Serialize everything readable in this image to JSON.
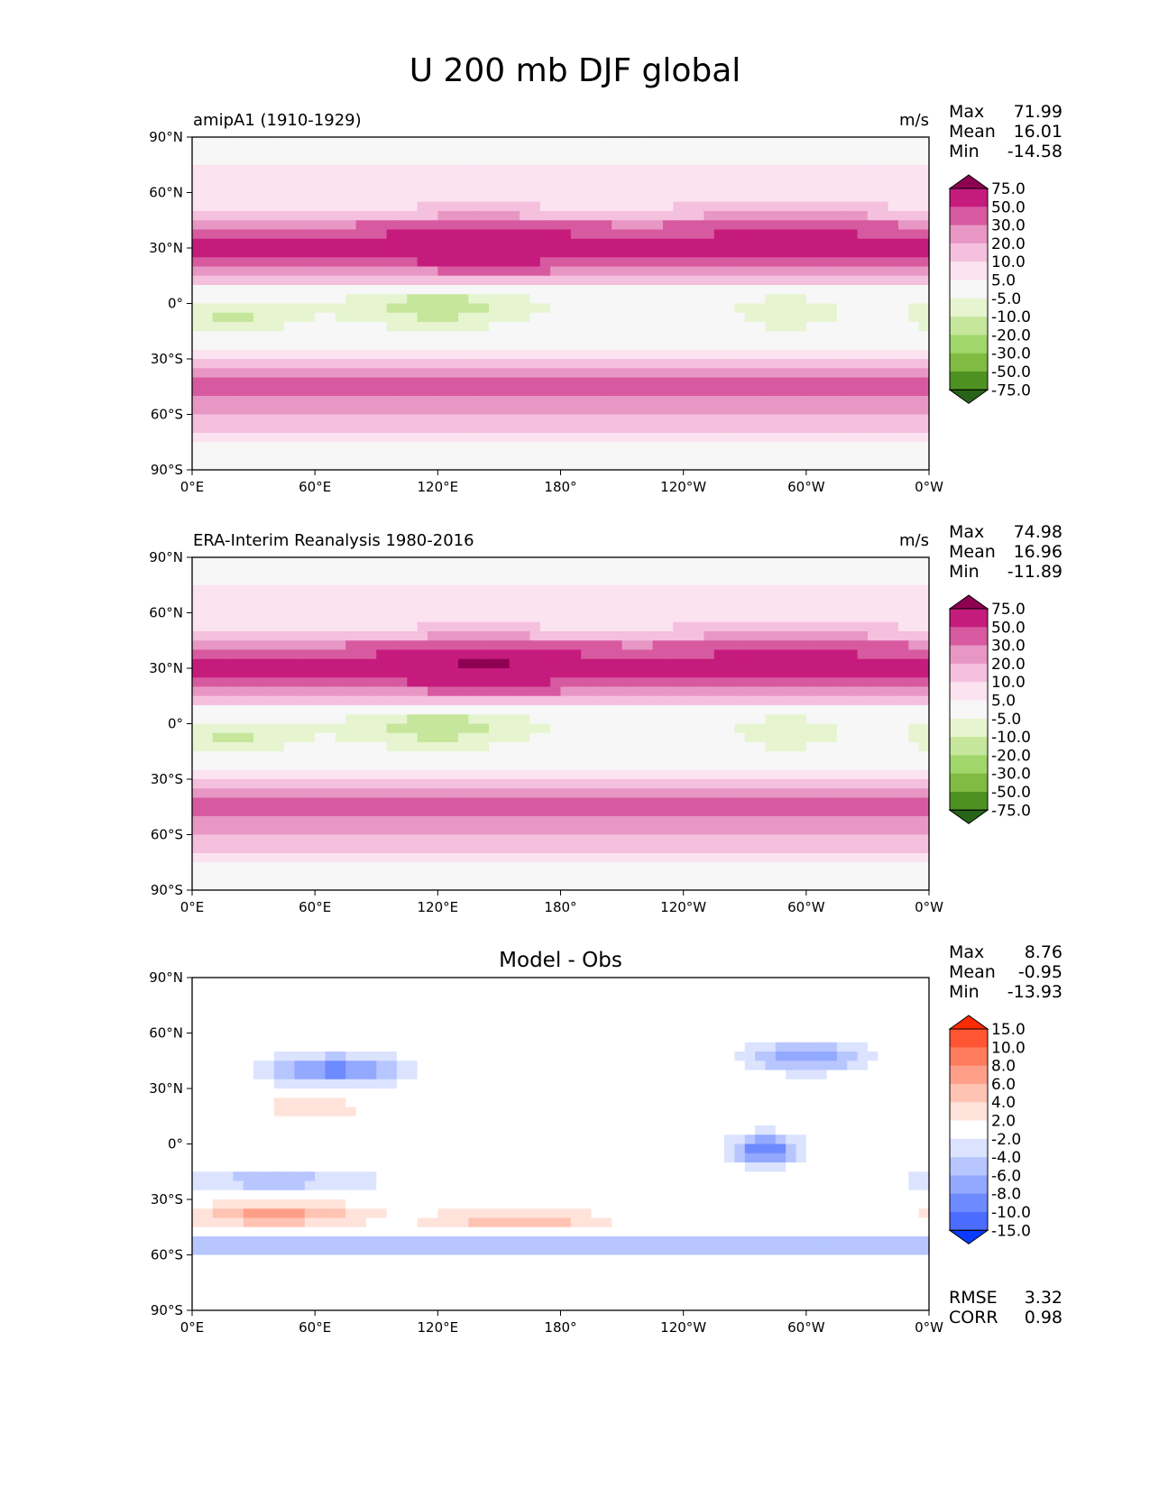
{
  "figure": {
    "title": "U 200 mb DJF global"
  },
  "chart_data": [
    {
      "type": "heatmap",
      "id": "model",
      "left_title": "amipA1 (1910-1929)",
      "center_title": "",
      "units": "m/s",
      "stats": [
        {
          "label": "Max",
          "value": "71.99"
        },
        {
          "label": "Mean",
          "value": "16.01"
        },
        {
          "label": "Min",
          "value": "-14.58"
        }
      ],
      "extra_stats": [],
      "xticks": [
        "0°E",
        "60°E",
        "120°E",
        "180°",
        "120°W",
        "60°W",
        "0°W"
      ],
      "yticks": [
        "90°N",
        "60°N",
        "30°N",
        "0°",
        "30°S",
        "60°S",
        "90°S"
      ],
      "xlim": [
        0,
        360
      ],
      "ylim": [
        -90,
        90
      ],
      "colorbar": {
        "levels": [
          "75.0",
          "50.0",
          "30.0",
          "20.0",
          "10.0",
          "5.0",
          "-5.0",
          "-10.0",
          "-20.0",
          "-30.0",
          "-50.0",
          "-75.0"
        ],
        "colors": [
          "#8e0152",
          "#c51b7d",
          "#d75aa0",
          "#e897c5",
          "#f4c0de",
          "#fbe3f0",
          "#f7f7f7",
          "#e6f5d0",
          "#c5e69b",
          "#a1d76a",
          "#7fbc41",
          "#4d9221",
          "#276419"
        ]
      }
    },
    {
      "type": "heatmap",
      "id": "obs",
      "left_title": "ERA-Interim Reanalysis 1980-2016",
      "center_title": "",
      "units": "m/s",
      "stats": [
        {
          "label": "Max",
          "value": "74.98"
        },
        {
          "label": "Mean",
          "value": "16.96"
        },
        {
          "label": "Min",
          "value": "-11.89"
        }
      ],
      "extra_stats": [],
      "xticks": [
        "0°E",
        "60°E",
        "120°E",
        "180°",
        "120°W",
        "60°W",
        "0°W"
      ],
      "yticks": [
        "90°N",
        "60°N",
        "30°N",
        "0°",
        "30°S",
        "60°S",
        "90°S"
      ],
      "xlim": [
        0,
        360
      ],
      "ylim": [
        -90,
        90
      ],
      "colorbar": {
        "levels": [
          "75.0",
          "50.0",
          "30.0",
          "20.0",
          "10.0",
          "5.0",
          "-5.0",
          "-10.0",
          "-20.0",
          "-30.0",
          "-50.0",
          "-75.0"
        ],
        "colors": [
          "#8e0152",
          "#c51b7d",
          "#d75aa0",
          "#e897c5",
          "#f4c0de",
          "#fbe3f0",
          "#f7f7f7",
          "#e6f5d0",
          "#c5e69b",
          "#a1d76a",
          "#7fbc41",
          "#4d9221",
          "#276419"
        ]
      }
    },
    {
      "type": "heatmap",
      "id": "diff",
      "left_title": "",
      "center_title": "Model - Obs",
      "units": "",
      "stats": [
        {
          "label": "Max",
          "value": "8.76"
        },
        {
          "label": "Mean",
          "value": "-0.95"
        },
        {
          "label": "Min",
          "value": "-13.93"
        }
      ],
      "extra_stats": [
        {
          "label": "RMSE",
          "value": "3.32"
        },
        {
          "label": "CORR",
          "value": "0.98"
        }
      ],
      "xticks": [
        "0°E",
        "60°E",
        "120°E",
        "180°",
        "120°W",
        "60°W",
        "0°W"
      ],
      "yticks": [
        "90°N",
        "60°N",
        "30°N",
        "0°",
        "30°S",
        "60°S",
        "90°S"
      ],
      "xlim": [
        0,
        360
      ],
      "ylim": [
        -90,
        90
      ],
      "colorbar": {
        "levels": [
          "15.0",
          "10.0",
          "8.0",
          "6.0",
          "4.0",
          "2.0",
          "-2.0",
          "-4.0",
          "-6.0",
          "-8.0",
          "-10.0",
          "-15.0"
        ],
        "colors": [
          "#ff2a00",
          "#ff5533",
          "#ff7b5e",
          "#ff9f89",
          "#ffc3b4",
          "#ffe3da",
          "#ffffff",
          "#dbe3ff",
          "#b7c6ff",
          "#93a8ff",
          "#6e8aff",
          "#4a6cff",
          "#0a3cff"
        ]
      }
    }
  ]
}
